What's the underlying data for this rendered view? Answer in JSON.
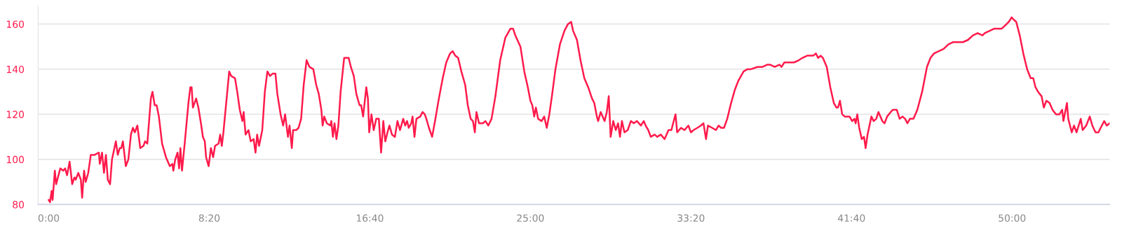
{
  "chart_data": {
    "type": "line",
    "xlim": [
      -33,
      3304
    ],
    "ylim": [
      80,
      168
    ],
    "xticks": [
      {
        "value": 0,
        "label": "0:00"
      },
      {
        "value": 500,
        "label": "8:20"
      },
      {
        "value": 1000,
        "label": "16:40"
      },
      {
        "value": 1500,
        "label": "25:00"
      },
      {
        "value": 2000,
        "label": "33:20"
      },
      {
        "value": 2500,
        "label": "41:40"
      },
      {
        "value": 3000,
        "label": "50:00"
      }
    ],
    "yticks": [
      80,
      100,
      120,
      140,
      160
    ],
    "grid": "y",
    "marker": "none",
    "line_style": "solid",
    "series": [
      {
        "color": "#ff1a4b",
        "x": [
          0,
          4,
          9,
          12,
          19,
          23,
          36,
          45,
          51,
          57,
          65,
          73,
          80,
          84,
          92,
          100,
          104,
          110,
          115,
          123,
          131,
          143,
          156,
          159,
          166,
          172,
          178,
          184,
          191,
          197,
          209,
          215,
          221,
          226,
          231,
          240,
          248,
          256,
          262,
          268,
          276,
          285,
          295,
          300,
          307,
          318,
          323,
          330,
          336,
          343,
          353,
          365,
          377,
          385,
          388,
          394,
          401,
          406,
          410,
          415,
          424,
          435,
          441,
          445,
          449,
          459,
          466,
          474,
          480,
          486,
          490,
          498,
          505,
          512,
          518,
          529,
          534,
          539,
          544,
          556,
          562,
          568,
          580,
          587,
          595,
          603,
          607,
          613,
          622,
          629,
          638,
          644,
          649,
          655,
          665,
          673,
          681,
          689,
          697,
          706,
          712,
          722,
          730,
          736,
          745,
          750,
          757,
          761,
          771,
          778,
          786,
          794,
          803,
          812,
          824,
          833,
          841,
          849,
          853,
          858,
          866,
          877,
          880,
          885,
          890,
          896,
          902,
          909,
          920,
          934,
          941,
          950,
          958,
          968,
          973,
          979,
          989,
          994,
          998,
          1005,
          1012,
          1020,
          1028,
          1035,
          1042,
          1048,
          1055,
          1061,
          1069,
          1078,
          1086,
          1094,
          1104,
          1110,
          1116,
          1121,
          1129,
          1133,
          1139,
          1145,
          1157,
          1164,
          1171,
          1176,
          1184,
          1194,
          1203,
          1215,
          1227,
          1238,
          1250,
          1258,
          1266,
          1275,
          1285,
          1297,
          1305,
          1314,
          1321,
          1327,
          1332,
          1340,
          1352,
          1360,
          1369,
          1379,
          1391,
          1406,
          1422,
          1438,
          1446,
          1453,
          1469,
          1481,
          1492,
          1500,
          1506,
          1512,
          1517,
          1524,
          1535,
          1543,
          1551,
          1559,
          1567,
          1578,
          1592,
          1606,
          1617,
          1627,
          1633,
          1645,
          1656,
          1668,
          1680,
          1692,
          1699,
          1707,
          1711,
          1719,
          1731,
          1738,
          1744,
          1750,
          1758,
          1766,
          1773,
          1779,
          1785,
          1793,
          1803,
          1813,
          1822,
          1832,
          1844,
          1853,
          1859,
          1867,
          1875,
          1887,
          1895,
          1906,
          1918,
          1930,
          1939,
          1952,
          1957,
          1969,
          1980,
          1992,
          2000,
          2008,
          2020,
          2031,
          2039,
          2047,
          2053,
          2066,
          2078,
          2086,
          2094,
          2103,
          2113,
          2125,
          2137,
          2148,
          2164,
          2176,
          2187,
          2207,
          2208,
          2223,
          2238,
          2246,
          2261,
          2276,
          2282,
          2291,
          2306,
          2321,
          2336,
          2347,
          2362,
          2381,
          2389,
          2396,
          2404,
          2411,
          2423,
          2434,
          2445,
          2453,
          2458,
          2464,
          2471,
          2479,
          2494,
          2502,
          2509,
          2513,
          2518,
          2524,
          2532,
          2539,
          2544,
          2550,
          2562,
          2569,
          2577,
          2584,
          2596,
          2603,
          2611,
          2622,
          2629,
          2641,
          2650,
          2659,
          2667,
          2674,
          2682,
          2693,
          2705,
          2720,
          2735,
          2746,
          2757,
          2772,
          2787,
          2802,
          2817,
          2832,
          2847,
          2863,
          2878,
          2893,
          2908,
          2915,
          2930,
          2945,
          2968,
          2983,
          2990,
          2999,
          3005,
          3013,
          3024,
          3035,
          3047,
          3058,
          3066,
          3073,
          3081,
          3092,
          3099,
          3107,
          3117,
          3126,
          3137,
          3148,
          3156,
          3160,
          3171,
          3175,
          3186,
          3193,
          3201,
          3214,
          3220,
          3231,
          3242,
          3250,
          3260,
          3269,
          3276,
          3287,
          3295,
          3304
        ],
        "values": [
          82,
          81,
          86,
          82,
          95,
          89,
          96,
          95,
          96,
          93,
          99,
          89,
          92,
          91,
          94,
          91,
          83,
          95,
          90,
          94,
          102,
          102,
          103,
          98,
          103,
          94,
          102,
          91,
          89,
          100,
          108,
          102,
          105,
          105,
          108,
          97,
          100,
          111,
          114,
          112,
          115,
          105,
          106,
          108,
          107,
          127,
          130,
          124,
          124,
          119,
          107,
          101,
          97,
          98,
          95,
          100,
          103,
          96,
          105,
          95,
          108,
          125,
          132,
          132,
          123,
          127,
          123,
          116,
          110,
          108,
          101,
          97,
          105,
          101,
          106,
          107,
          111,
          106,
          112,
          130,
          139,
          137,
          136,
          130,
          122,
          117,
          121,
          111,
          113,
          108,
          109,
          103,
          111,
          106,
          113,
          130,
          139,
          137,
          138,
          138,
          129,
          120,
          115,
          120,
          110,
          115,
          105,
          113,
          113,
          114,
          118,
          133,
          144,
          141,
          140,
          133,
          129,
          122,
          115,
          119,
          116,
          115,
          117,
          110,
          116,
          109,
          115,
          130,
          145,
          145,
          141,
          137,
          129,
          124,
          124,
          119,
          132,
          127,
          112,
          120,
          113,
          118,
          118,
          103,
          117,
          108,
          112,
          115,
          111,
          110,
          117,
          113,
          118,
          115,
          117,
          114,
          116,
          119,
          110,
          118,
          119,
          121,
          120,
          118,
          114,
          110,
          117,
          127,
          136,
          143,
          147,
          148,
          146,
          145,
          139,
          133,
          124,
          118,
          117,
          112,
          121,
          116,
          116,
          117,
          115,
          118,
          128,
          144,
          154,
          158,
          158,
          155,
          150,
          139,
          132,
          126,
          124,
          119,
          123,
          118,
          117,
          119,
          114,
          120,
          128,
          140,
          151,
          157,
          160,
          161,
          157,
          153,
          144,
          136,
          132,
          127,
          125,
          119,
          117,
          121,
          117,
          121,
          128,
          110,
          117,
          113,
          116,
          110,
          117,
          112,
          113,
          117,
          116,
          117,
          115,
          117,
          115,
          113,
          110,
          111,
          110,
          111,
          109,
          113,
          113,
          120,
          112,
          114,
          113,
          115,
          112,
          113,
          114,
          115,
          116,
          109,
          115,
          114,
          113,
          115,
          114,
          114,
          118,
          125,
          131,
          135,
          139,
          140,
          140,
          141,
          141,
          141,
          142,
          142,
          141,
          142,
          141,
          143,
          143,
          143,
          144,
          145,
          146,
          146,
          147,
          145,
          146,
          145,
          141,
          132,
          125,
          123,
          123,
          126,
          120,
          119,
          119,
          117,
          118,
          116,
          120,
          114,
          109,
          110,
          105,
          111,
          119,
          117,
          118,
          121,
          117,
          116,
          119,
          121,
          122,
          122,
          118,
          119,
          118,
          116,
          118,
          118,
          122,
          130,
          141,
          145,
          147,
          148,
          149,
          151,
          152,
          152,
          152,
          153,
          155,
          156,
          155,
          156,
          157,
          158,
          158,
          160,
          161,
          163,
          162,
          161,
          155,
          147,
          140,
          136,
          136,
          132,
          130,
          128,
          123,
          126,
          125,
          122,
          120,
          120,
          122,
          117,
          125,
          118,
          112,
          115,
          112,
          118,
          113,
          115,
          119,
          115,
          112,
          112,
          114,
          117,
          115,
          116
        ]
      }
    ]
  }
}
